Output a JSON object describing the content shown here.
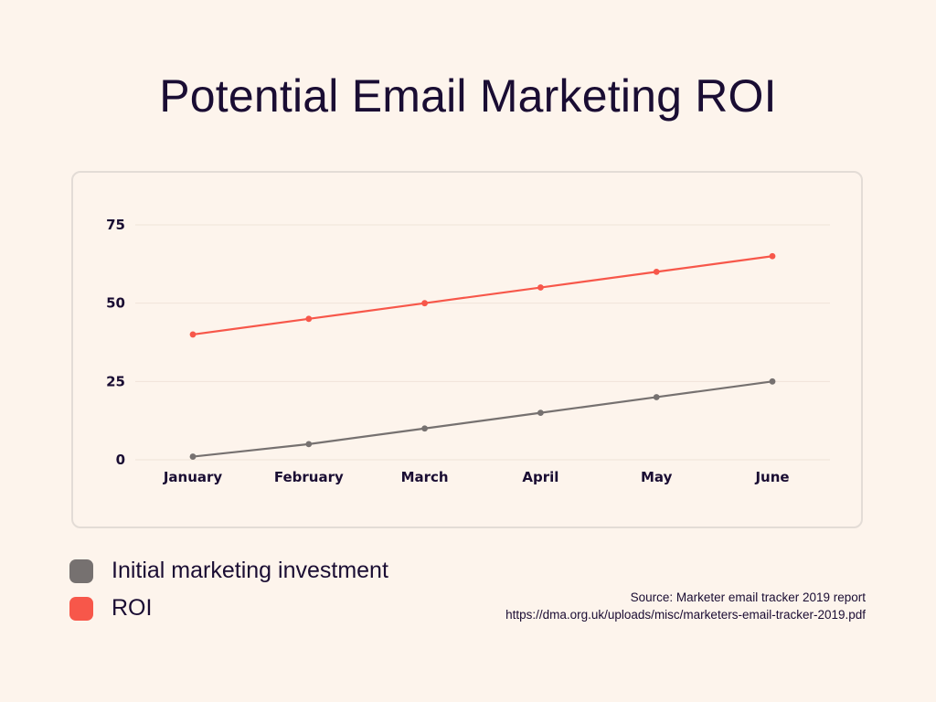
{
  "chart_data": {
    "type": "line",
    "title": "Potential Email Marketing ROI",
    "categories": [
      "January",
      "February",
      "March",
      "April",
      "May",
      "June"
    ],
    "yticks": [
      0,
      25,
      50,
      75
    ],
    "ylim": [
      0,
      75
    ],
    "grid": true,
    "legend_placement": "bottom-left",
    "series": [
      {
        "name": "Initial marketing investment",
        "color": "#767170",
        "values": [
          1,
          5,
          10,
          15,
          20,
          25
        ]
      },
      {
        "name": "ROI",
        "color": "#f7574a",
        "values": [
          40,
          45,
          50,
          55,
          60,
          65
        ]
      }
    ]
  },
  "source": {
    "line1": "Source: Marketer email tracker 2019 report",
    "line2": "https://dma.org.uk/uploads/misc/marketers-email-tracker-2019.pdf"
  }
}
